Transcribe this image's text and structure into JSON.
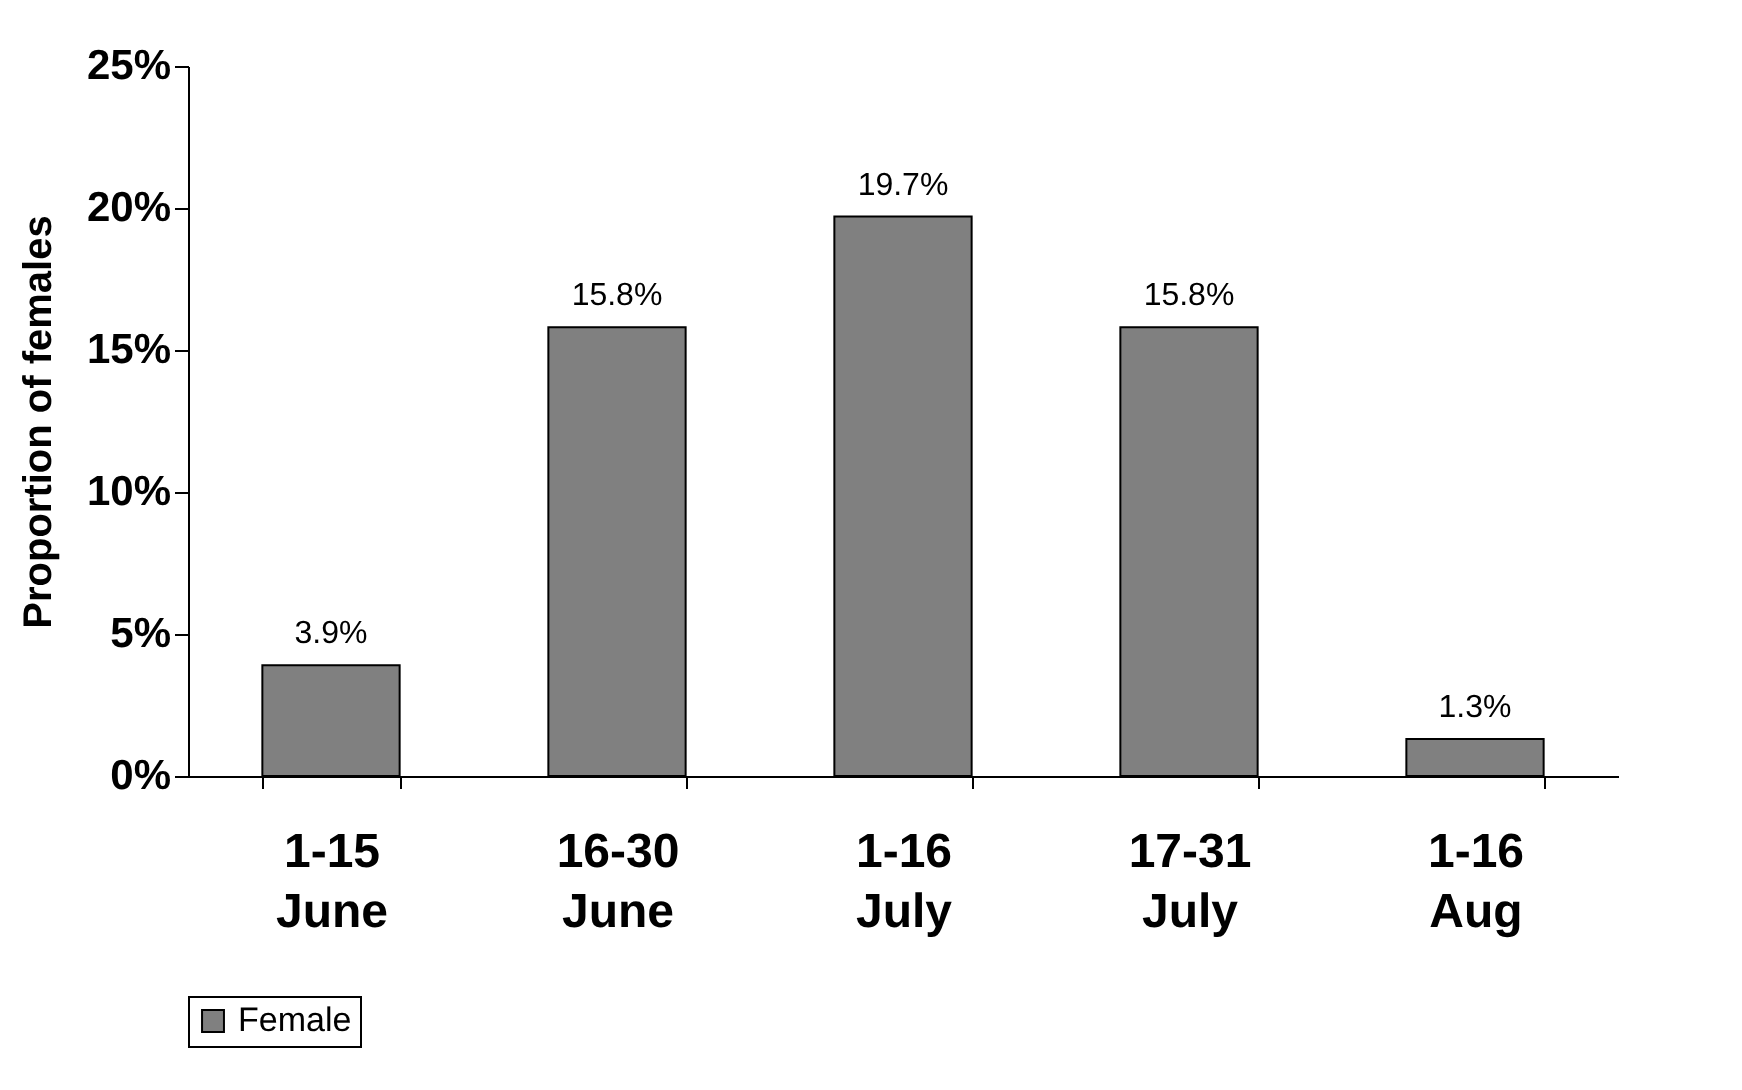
{
  "chart_data": {
    "type": "bar",
    "ylabel": "Proportion of females",
    "categories": [
      "1-15 June",
      "16-30 June",
      "1-16 July",
      "17-31 July",
      "1-16 Aug"
    ],
    "series": [
      {
        "name": "Female",
        "color": "#808080",
        "values": [
          3.9,
          15.8,
          19.7,
          15.8,
          1.3
        ],
        "value_labels": [
          "3.9%",
          "15.8%",
          "19.7%",
          "15.8%",
          "1.3%"
        ]
      }
    ],
    "ylim": [
      0,
      25
    ],
    "yticks": [
      {
        "value": 0,
        "label": "0%"
      },
      {
        "value": 5,
        "label": "5%"
      },
      {
        "value": 10,
        "label": "10%"
      },
      {
        "value": 15,
        "label": "15%"
      },
      {
        "value": 20,
        "label": "20%"
      },
      {
        "value": 25,
        "label": "25%"
      }
    ],
    "grid": false,
    "legend": "bottom"
  }
}
